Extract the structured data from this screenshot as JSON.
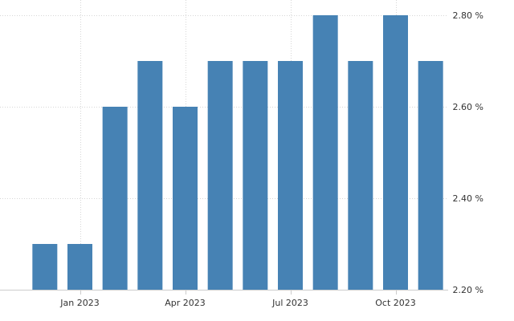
{
  "chart_data": {
    "type": "bar",
    "title": "",
    "xlabel": "",
    "ylabel": "",
    "categories": [
      "2022-12",
      "2023-01",
      "2023-02",
      "2023-03",
      "2023-04",
      "2023-05",
      "2023-06",
      "2023-07",
      "2023-08",
      "2023-09",
      "2023-10",
      "2023-11"
    ],
    "values": [
      2.3,
      2.3,
      2.6,
      2.7,
      2.6,
      2.7,
      2.7,
      2.7,
      2.8,
      2.7,
      2.8,
      2.7
    ],
    "ylim": [
      2.2,
      2.8
    ],
    "y_ticks": [
      {
        "value": 2.2,
        "label": "2.20 %"
      },
      {
        "value": 2.4,
        "label": "2.40 %"
      },
      {
        "value": 2.6,
        "label": "2.60 %"
      },
      {
        "value": 2.8,
        "label": "2.80 %"
      }
    ],
    "x_ticks": [
      {
        "category": "2023-01",
        "label": "Jan 2023"
      },
      {
        "category": "2023-04",
        "label": "Apr 2023"
      },
      {
        "category": "2023-07",
        "label": "Jul 2023"
      },
      {
        "category": "2023-10",
        "label": "Oct 2023"
      }
    ],
    "y_axis_position": "right",
    "grid": true,
    "bar_color": "#4682b4",
    "grid_color": "#d6d6d6"
  }
}
